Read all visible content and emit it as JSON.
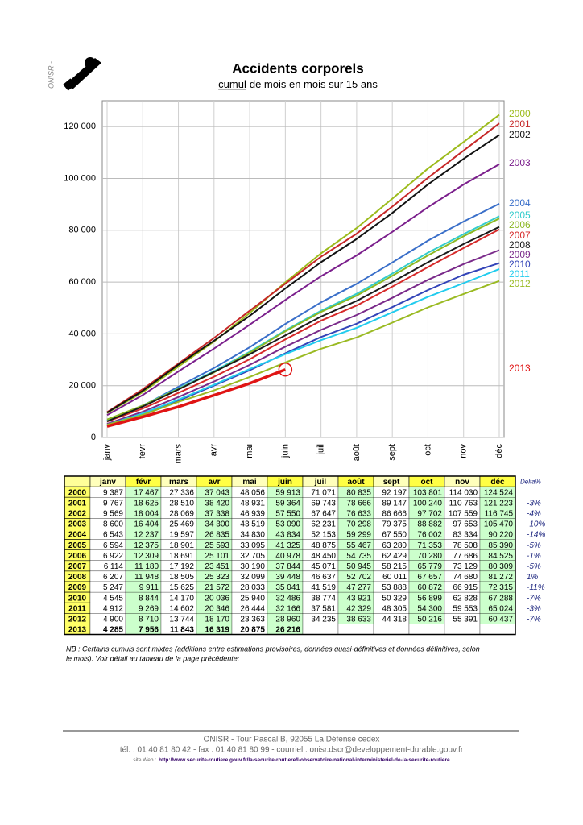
{
  "header": {
    "logo_text": "ONISR -"
  },
  "chart_data": {
    "type": "line",
    "title": "Accidents corporels",
    "subtitle": {
      "underlined": "cumul",
      "rest": "de mois en mois sur 15 ans"
    },
    "categories": [
      "janv",
      "févr",
      "mars",
      "avr",
      "mai",
      "juin",
      "juil",
      "août",
      "sept",
      "oct",
      "nov",
      "déc"
    ],
    "ylim": [
      0,
      130000
    ],
    "yticks": [
      {
        "value": 0,
        "label": "0"
      },
      {
        "value": 20000,
        "label": "20 000"
      },
      {
        "value": 40000,
        "label": "40 000"
      },
      {
        "value": 60000,
        "label": "60 000"
      },
      {
        "value": 80000,
        "label": "80 000"
      },
      {
        "value": 100000,
        "label": "100 000"
      },
      {
        "value": 120000,
        "label": "120 000"
      }
    ],
    "grid": true,
    "series": [
      {
        "name": "2000",
        "color": "#9cbb1c",
        "values": [
          9387,
          17467,
          27336,
          37043,
          48056,
          59913,
          71071,
          80835,
          92197,
          103801,
          114030,
          124524
        ],
        "value_labels": [
          "9 387",
          "17 467",
          "27 336",
          "37 043",
          "48 056",
          "59 913",
          "71 071",
          "80 835",
          "92 197",
          "103 801",
          "114 030",
          "124 524"
        ]
      },
      {
        "name": "2001",
        "color": "#c62828",
        "values": [
          9767,
          18625,
          28510,
          38420,
          48931,
          59364,
          69743,
          78666,
          89147,
          100240,
          110763,
          121223
        ],
        "value_labels": [
          "9 767",
          "18 625",
          "28 510",
          "38 420",
          "48 931",
          "59 364",
          "69 743",
          "78 666",
          "89 147",
          "100 240",
          "110 763",
          "121 223"
        ],
        "delta": "-3%"
      },
      {
        "name": "2002",
        "color": "#111111",
        "values": [
          9569,
          18004,
          28069,
          37338,
          46939,
          57550,
          67647,
          76633,
          86666,
          97702,
          107559,
          116745
        ],
        "value_labels": [
          "9 569",
          "18 004",
          "28 069",
          "37 338",
          "46 939",
          "57 550",
          "67 647",
          "76 633",
          "86 666",
          "97 702",
          "107 559",
          "116 745"
        ],
        "delta": "-4%"
      },
      {
        "name": "2003",
        "color": "#7b1f8c",
        "values": [
          8600,
          16404,
          25469,
          34300,
          43519,
          53090,
          62231,
          70298,
          79375,
          88882,
          97653,
          105470
        ],
        "value_labels": [
          "8 600",
          "16 404",
          "25 469",
          "34 300",
          "43 519",
          "53 090",
          "62 231",
          "70 298",
          "79 375",
          "88 882",
          "97 653",
          "105 470"
        ],
        "delta": "-10%"
      },
      {
        "name": "2004",
        "color": "#3a6fc9",
        "values": [
          6543,
          12237,
          19597,
          26835,
          34830,
          43834,
          52153,
          59299,
          67550,
          76002,
          83334,
          90220
        ],
        "value_labels": [
          "6 543",
          "12 237",
          "19 597",
          "26 835",
          "34 830",
          "43 834",
          "52 153",
          "59 299",
          "67 550",
          "76 002",
          "83 334",
          "90 220"
        ],
        "delta": "-14%"
      },
      {
        "name": "2005",
        "color": "#33cccc",
        "values": [
          6594,
          12375,
          18901,
          25593,
          33095,
          41325,
          48875,
          55467,
          63280,
          71353,
          78508,
          85390
        ],
        "value_labels": [
          "6 594",
          "12 375",
          "18 901",
          "25 593",
          "33 095",
          "41 325",
          "48 875",
          "55 467",
          "63 280",
          "71 353",
          "78 508",
          "85 390"
        ],
        "delta": "-5%"
      },
      {
        "name": "2006",
        "color": "#8cb823",
        "values": [
          6922,
          12309,
          18691,
          25101,
          32705,
          40978,
          48450,
          54735,
          62429,
          70280,
          77686,
          84525
        ],
        "value_labels": [
          "6 922",
          "12 309",
          "18 691",
          "25 101",
          "32 705",
          "40 978",
          "48 450",
          "54 735",
          "62 429",
          "70 280",
          "77 686",
          "84 525"
        ],
        "delta": "-1%"
      },
      {
        "name": "2007",
        "color": "#d62a2a",
        "values": [
          6114,
          11180,
          17192,
          23451,
          30190,
          37844,
          45071,
          50945,
          58215,
          65779,
          73129,
          80309
        ],
        "value_labels": [
          "6 114",
          "11 180",
          "17 192",
          "23 451",
          "30 190",
          "37 844",
          "45 071",
          "50 945",
          "58 215",
          "65 779",
          "73 129",
          "80 309"
        ],
        "delta": "-5%"
      },
      {
        "name": "2008",
        "color": "#1a1a1a",
        "values": [
          6207,
          11948,
          18505,
          25323,
          32099,
          39448,
          46637,
          52702,
          60011,
          67657,
          74680,
          81272
        ],
        "value_labels": [
          "6 207",
          "11 948",
          "18 505",
          "25 323",
          "32 099",
          "39 448",
          "46 637",
          "52 702",
          "60 011",
          "67 657",
          "74 680",
          "81 272"
        ],
        "delta": "1%"
      },
      {
        "name": "2009",
        "color": "#7a2a8a",
        "values": [
          5247,
          9911,
          15625,
          21572,
          28033,
          35041,
          41519,
          47277,
          53888,
          60872,
          66915,
          72315
        ],
        "value_labels": [
          "5 247",
          "9 911",
          "15 625",
          "21 572",
          "28 033",
          "35 041",
          "41 519",
          "47 277",
          "53 888",
          "60 872",
          "66 915",
          "72 315"
        ],
        "delta": "-11%"
      },
      {
        "name": "2010",
        "color": "#3344b8",
        "values": [
          4545,
          8844,
          14170,
          20036,
          25940,
          32486,
          38774,
          43921,
          50329,
          56899,
          62828,
          67288
        ],
        "value_labels": [
          "4 545",
          "8 844",
          "14 170",
          "20 036",
          "25 940",
          "32 486",
          "38 774",
          "43 921",
          "50 329",
          "56 899",
          "62 828",
          "67 288"
        ],
        "delta": "-7%"
      },
      {
        "name": "2011",
        "color": "#22ccee",
        "values": [
          4912,
          9269,
          14602,
          20346,
          26444,
          32166,
          37581,
          42329,
          48305,
          54300,
          59553,
          65024
        ],
        "value_labels": [
          "4 912",
          "9 269",
          "14 602",
          "20 346",
          "26 444",
          "32 166",
          "37 581",
          "42 329",
          "48 305",
          "54 300",
          "59 553",
          "65 024"
        ],
        "delta": "-3%"
      },
      {
        "name": "2012",
        "color": "#9aba22",
        "values": [
          4900,
          8710,
          13744,
          18170,
          23363,
          28960,
          34235,
          38633,
          44318,
          50216,
          55391,
          60437
        ],
        "value_labels": [
          "4 900",
          "8 710",
          "13 744",
          "18 170",
          "23 363",
          "28 960",
          "34 235",
          "38 633",
          "44 318",
          "50 216",
          "55 391",
          "60 437"
        ],
        "delta": "-7%"
      },
      {
        "name": "2013",
        "color": "#e01414",
        "values": [
          4285,
          7956,
          11843,
          16319,
          20875,
          26216,
          null,
          null,
          null,
          null,
          null,
          null
        ],
        "value_labels": [
          "4 285",
          "7 956",
          "11 843",
          "16 319",
          "20 875",
          "26 216",
          null,
          null,
          null,
          null,
          null,
          null
        ]
      }
    ]
  },
  "table": {
    "delta_header": "Delta%"
  },
  "note": [
    "NB : Certains cumuls sont mixtes (additions entre estimations provisoires, données quasi-définitives et données définitives, selon",
    "le mois). Voir détail au tableau de la page précédente;"
  ],
  "footer": {
    "address": "ONISR - Tour Pascal B, 92055 La Défense cedex",
    "contact": "tél. : 01 40 81 80 42 - fax : 01 40 81 80 99 - courriel : onisr.dscr@developpement-durable.gouv.fr",
    "web_label": "site Web :",
    "web_url": "http://www.securite-routiere.gouv.fr/la-securite-routiere/l-observatoire-national-interministeriel-de-la-securite-routiere"
  }
}
